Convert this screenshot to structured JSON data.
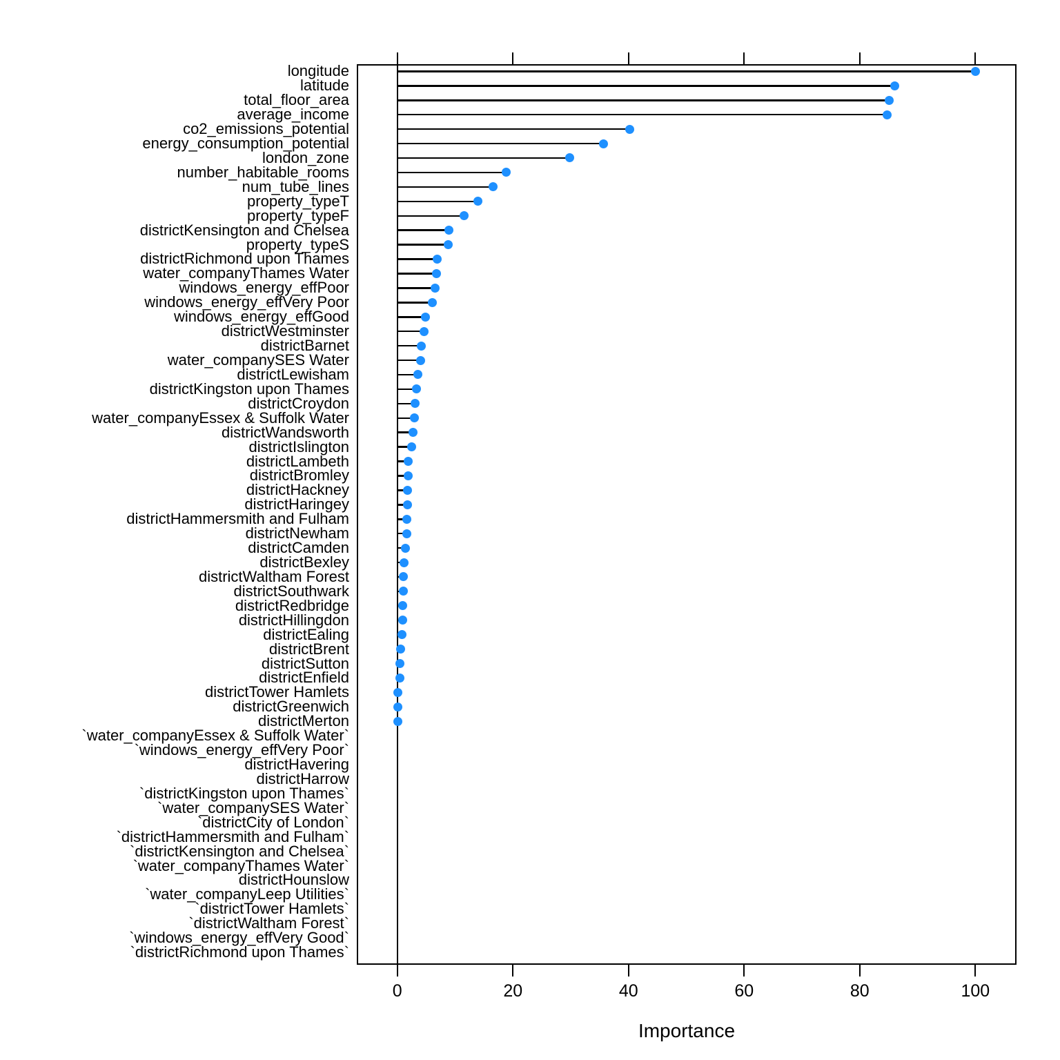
{
  "chart_data": {
    "type": "lollipop",
    "title": "",
    "xlabel": "Importance",
    "xlim": [
      0,
      100
    ],
    "xticks": [
      0,
      20,
      40,
      60,
      80,
      100
    ],
    "grid": false,
    "legend": "none",
    "point_color": "#1E90FF",
    "line_color": "#000000",
    "categories": [
      "longitude",
      "latitude",
      "total_floor_area",
      "average_income",
      "co2_emissions_potential",
      "energy_consumption_potential",
      "london_zone",
      "number_habitable_rooms",
      "num_tube_lines",
      "property_typeT",
      "property_typeF",
      "districtKensington and Chelsea",
      "property_typeS",
      "districtRichmond upon Thames",
      "water_companyThames Water",
      "windows_energy_effPoor",
      "windows_energy_effVery Poor",
      "windows_energy_effGood",
      "districtWestminster",
      "districtBarnet",
      "water_companySES Water",
      "districtLewisham",
      "districtKingston upon Thames",
      "districtCroydon",
      "water_companyEssex & Suffolk Water",
      "districtWandsworth",
      "districtIslington",
      "districtLambeth",
      "districtBromley",
      "districtHackney",
      "districtHaringey",
      "districtHammersmith and Fulham",
      "districtNewham",
      "districtCamden",
      "districtBexley",
      "districtWaltham Forest",
      "districtSouthwark",
      "districtRedbridge",
      "districtHillingdon",
      "districtEaling",
      "districtBrent",
      "districtSutton",
      "districtEnfield",
      "districtTower Hamlets",
      "districtGreenwich",
      "districtMerton",
      "`water_companyEssex & Suffolk Water`",
      "`windows_energy_effVery Poor`",
      "districtHavering",
      "districtHarrow",
      "`districtKingston upon Thames`",
      "`water_companySES Water`",
      "`districtCity of London`",
      "`districtHammersmith and Fulham`",
      "`districtKensington and Chelsea`",
      "`water_companyThames Water`",
      "districtHounslow",
      "`water_companyLeep Utilities`",
      "`districtTower Hamlets`",
      "`districtWaltham Forest`",
      "`windows_energy_effVery Good`",
      "`districtRichmond upon Thames`"
    ],
    "values": [
      100,
      86,
      85.1,
      84.7,
      40.2,
      35.7,
      29.8,
      18.8,
      16.6,
      13.9,
      11.6,
      8.9,
      8.8,
      6.9,
      6.8,
      6.5,
      6.1,
      4.9,
      4.6,
      4.2,
      4,
      3.6,
      3.3,
      3.1,
      3,
      2.7,
      2.5,
      1.9,
      1.85,
      1.8,
      1.75,
      1.7,
      1.6,
      1.4,
      1.2,
      1.1,
      1,
      0.95,
      0.9,
      0.85,
      0.6,
      0.5,
      0.45,
      0.15,
      0.1,
      0.05,
      null,
      null,
      null,
      null,
      null,
      null,
      null,
      null,
      null,
      null,
      null,
      null,
      null,
      null,
      null,
      null
    ]
  }
}
